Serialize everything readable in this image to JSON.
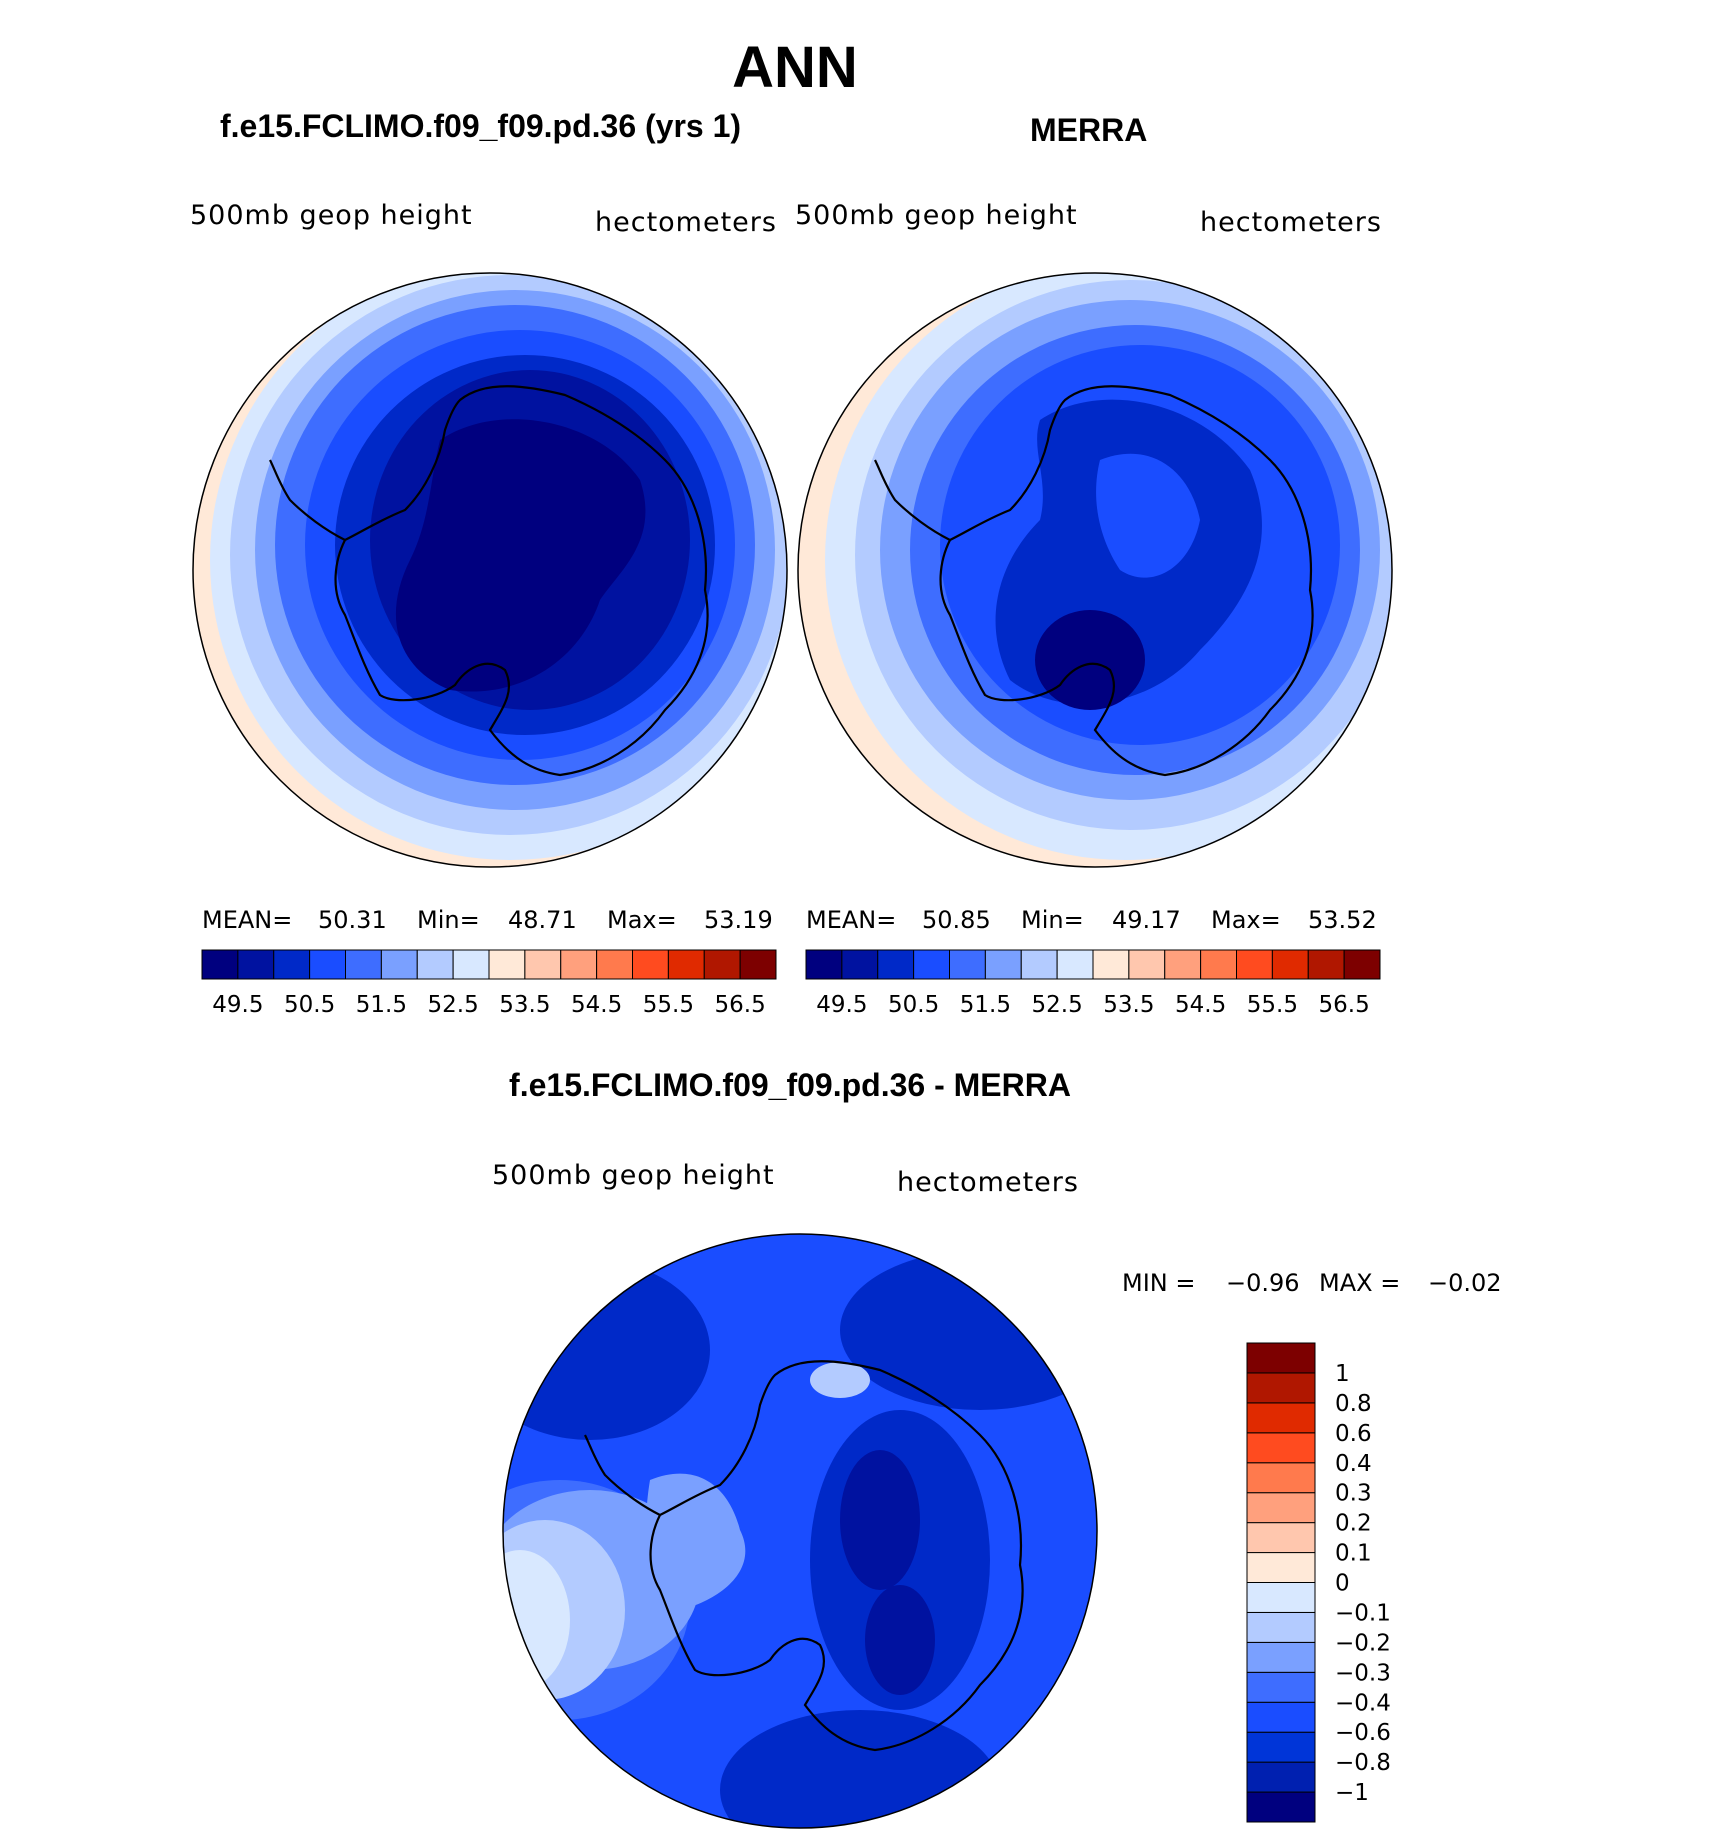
{
  "header": {
    "season": "ANN",
    "left_case": "f.e15.FCLIMO.f09_f09.pd.36 (yrs 1)",
    "right_case": "MERRA",
    "diff_title": "f.e15.FCLIMO.f09_f09.pd.36 - MERRA"
  },
  "panels": [
    {
      "variable": "500mb  geop  height",
      "units": "hectometers",
      "stats": {
        "mean_label": "MEAN=",
        "mean": "50.31",
        "min_label": "Min=",
        "min": "48.71",
        "max_label": "Max=",
        "max": "53.19"
      }
    },
    {
      "variable": "500mb  geop  height",
      "units": "hectometers",
      "stats": {
        "mean_label": "MEAN=",
        "mean": "50.85",
        "min_label": "Min=",
        "min": "49.17",
        "max_label": "Max=",
        "max": "53.52"
      }
    },
    {
      "variable": "500mb  geop  height",
      "units": "hectometers",
      "stats": {
        "min_label": "MIN =",
        "min": "−0.96",
        "max_label": "MAX =",
        "max": "−0.02"
      }
    }
  ],
  "colorbar_abs": {
    "colors": [
      "#00007f",
      "#0012a0",
      "#0029c8",
      "#1a4dff",
      "#3e6dff",
      "#7aa0ff",
      "#b3cbff",
      "#d8e8ff",
      "#ffe9d8",
      "#ffc7ae",
      "#ffa07d",
      "#ff7a4d",
      "#ff4b1f",
      "#e02a00",
      "#b01700",
      "#7d0000"
    ],
    "labels": [
      "49.5",
      "50.5",
      "51.5",
      "52.5",
      "53.5",
      "54.5",
      "55.5",
      "56.5"
    ]
  },
  "colorbar_diff": {
    "colors": [
      "#00007f",
      "#0020b0",
      "#0035d8",
      "#1a4dff",
      "#3e6dff",
      "#7aa0ff",
      "#b3cbff",
      "#d8e8ff",
      "#ffe9d8",
      "#ffc7ae",
      "#ffa07d",
      "#ff7a4d",
      "#ff4b1f",
      "#e02a00",
      "#b01700",
      "#7d0000"
    ],
    "labels": [
      "−1",
      "−0.8",
      "−0.6",
      "−0.4",
      "−0.3",
      "−0.2",
      "−0.1",
      "0",
      "0.1",
      "0.2",
      "0.3",
      "0.4",
      "0.6",
      "0.8",
      "1"
    ]
  }
}
